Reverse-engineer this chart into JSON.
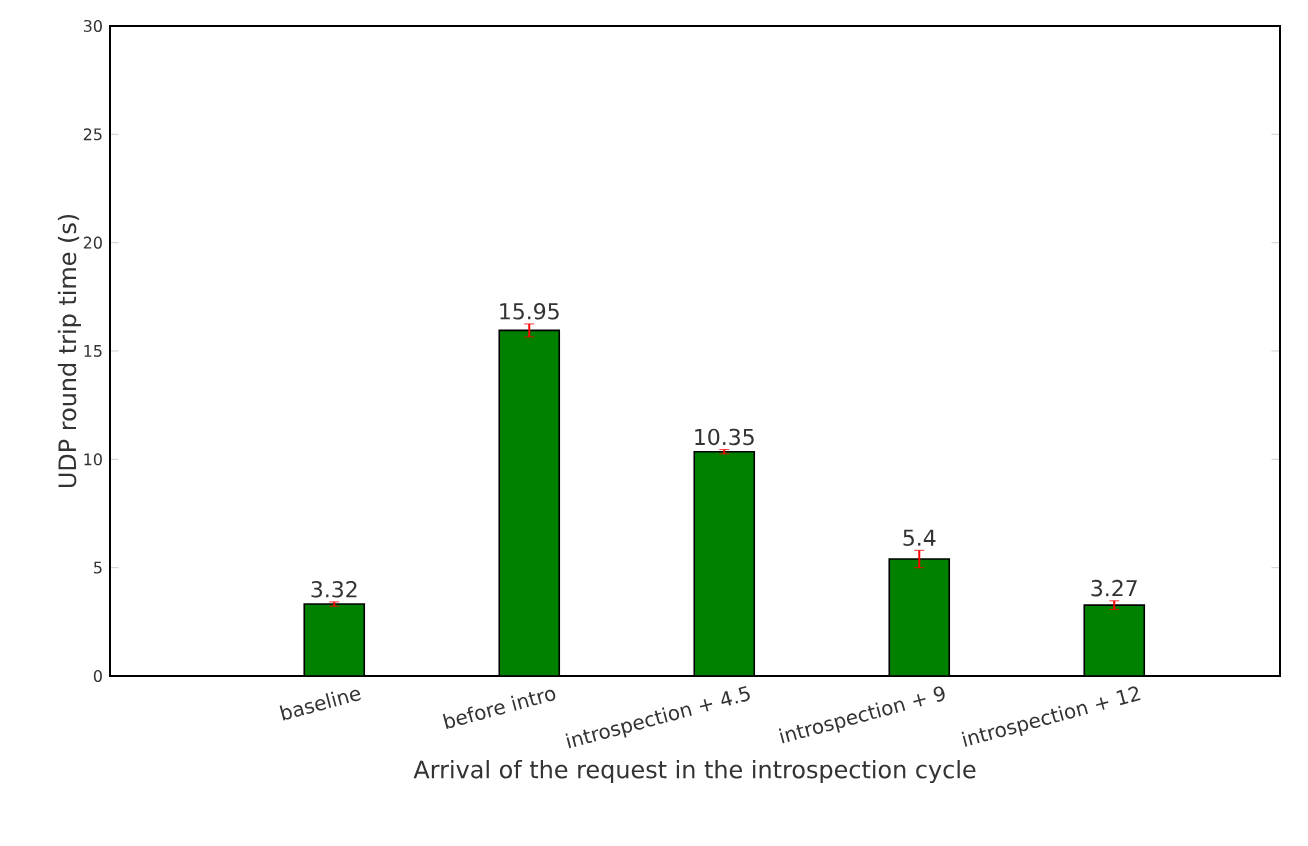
{
  "chart_data": {
    "type": "bar",
    "xlabel": "Arrival of the request in the introspection cycle",
    "ylabel": "UDP round trip time (s)",
    "categories": [
      "baseline",
      "before intro",
      "introspection + 4.5",
      "introspection + 9",
      "introspection + 12"
    ],
    "values": [
      3.32,
      15.95,
      10.35,
      5.4,
      3.27
    ],
    "errors": [
      0.1,
      0.3,
      0.1,
      0.4,
      0.2
    ],
    "color": "#008000",
    "ylim": [
      0,
      30
    ],
    "yticks": [
      0,
      5,
      10,
      15,
      20,
      25,
      30
    ],
    "data_labels": true
  }
}
